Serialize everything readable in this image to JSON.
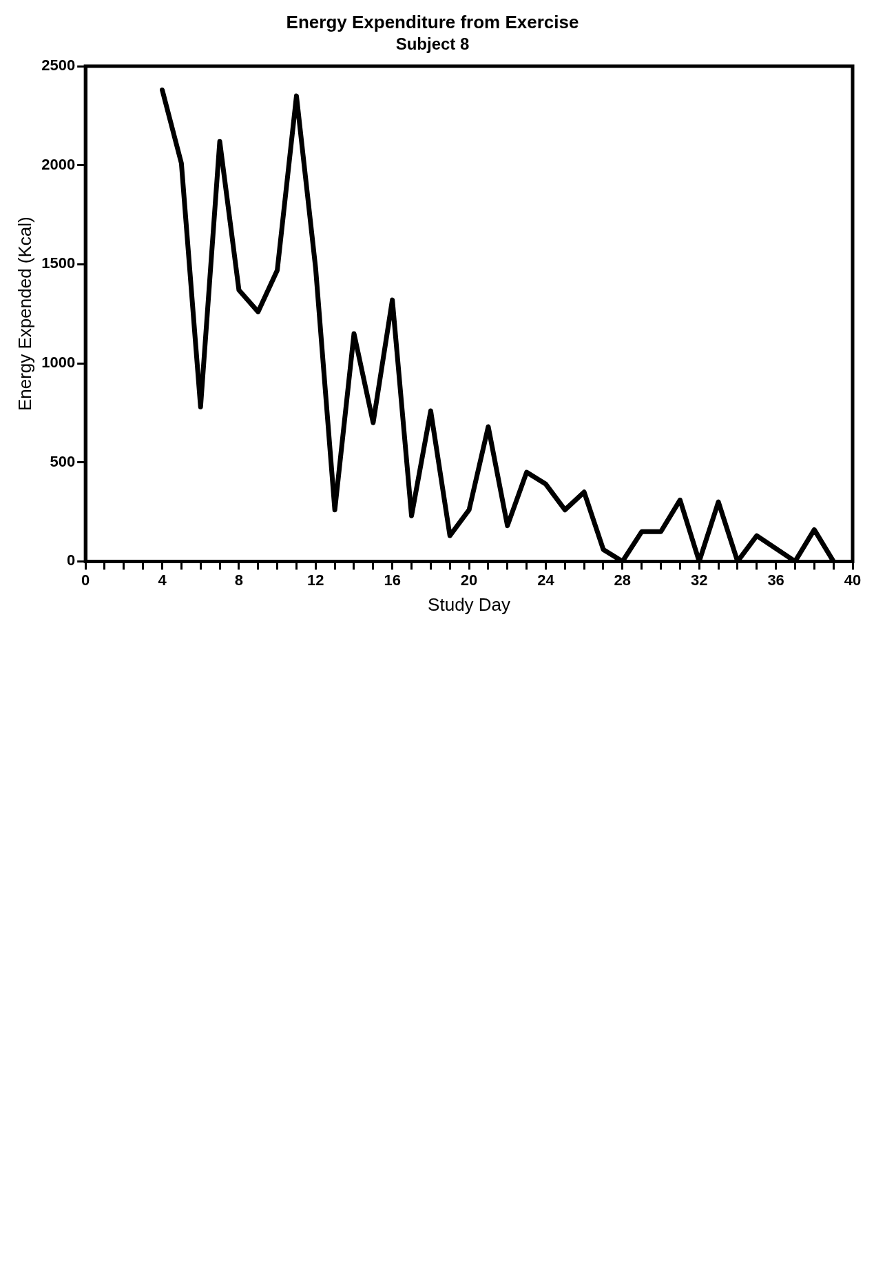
{
  "chart_data": {
    "type": "line",
    "title": "Energy Expenditure from Exercise",
    "subtitle": "Subject 8",
    "xlabel": "Study Day",
    "ylabel": "Energy Expended (Kcal)",
    "x": [
      4,
      5,
      6,
      7,
      8,
      9,
      10,
      11,
      12,
      13,
      14,
      15,
      16,
      17,
      18,
      19,
      20,
      21,
      22,
      23,
      24,
      25,
      26,
      27,
      28,
      29,
      30,
      31,
      32,
      33,
      34,
      35,
      37,
      38,
      39
    ],
    "series": [
      {
        "color": "#000000",
        "values": [
          2380,
          2010,
          780,
          2120,
          1370,
          1260,
          1470,
          2350,
          1480,
          260,
          1150,
          700,
          1320,
          230,
          760,
          130,
          260,
          680,
          180,
          450,
          390,
          260,
          350,
          60,
          0,
          150,
          150,
          310,
          0,
          300,
          0,
          130,
          0,
          160,
          0
        ]
      }
    ],
    "xlim": [
      0,
      40
    ],
    "xticks": [
      0,
      {
        "value": 1,
        "label": null
      },
      {
        "value": 2,
        "label": null
      },
      {
        "value": 3,
        "label": null
      },
      4,
      {
        "value": 5,
        "label": null
      },
      {
        "value": 6,
        "label": null
      },
      {
        "value": 7,
        "label": null
      },
      8,
      {
        "value": 9,
        "label": null
      },
      {
        "value": 10,
        "label": null
      },
      {
        "value": 11,
        "label": null
      },
      12,
      {
        "value": 13,
        "label": null
      },
      {
        "value": 14,
        "label": null
      },
      {
        "value": 15,
        "label": null
      },
      16,
      {
        "value": 17,
        "label": null
      },
      {
        "value": 18,
        "label": null
      },
      {
        "value": 19,
        "label": null
      },
      20,
      {
        "value": 21,
        "label": null
      },
      {
        "value": 22,
        "label": null
      },
      {
        "value": 23,
        "label": null
      },
      24,
      {
        "value": 25,
        "label": null
      },
      {
        "value": 26,
        "label": null
      },
      {
        "value": 27,
        "label": null
      },
      28,
      {
        "value": 29,
        "label": null
      },
      {
        "value": 30,
        "label": null
      },
      {
        "value": 31,
        "label": null
      },
      32,
      {
        "value": 33,
        "label": null
      },
      {
        "value": 34,
        "label": null
      },
      {
        "value": 35,
        "label": null
      },
      36,
      {
        "value": 37,
        "label": null
      },
      {
        "value": 38,
        "label": null
      },
      {
        "value": 39,
        "label": null
      },
      40
    ],
    "ylim": [
      0,
      2500
    ],
    "yticks": [
      0,
      500,
      1000,
      1500,
      2000,
      2500
    ],
    "legend": false,
    "marker": "none",
    "line_style": "solid"
  }
}
